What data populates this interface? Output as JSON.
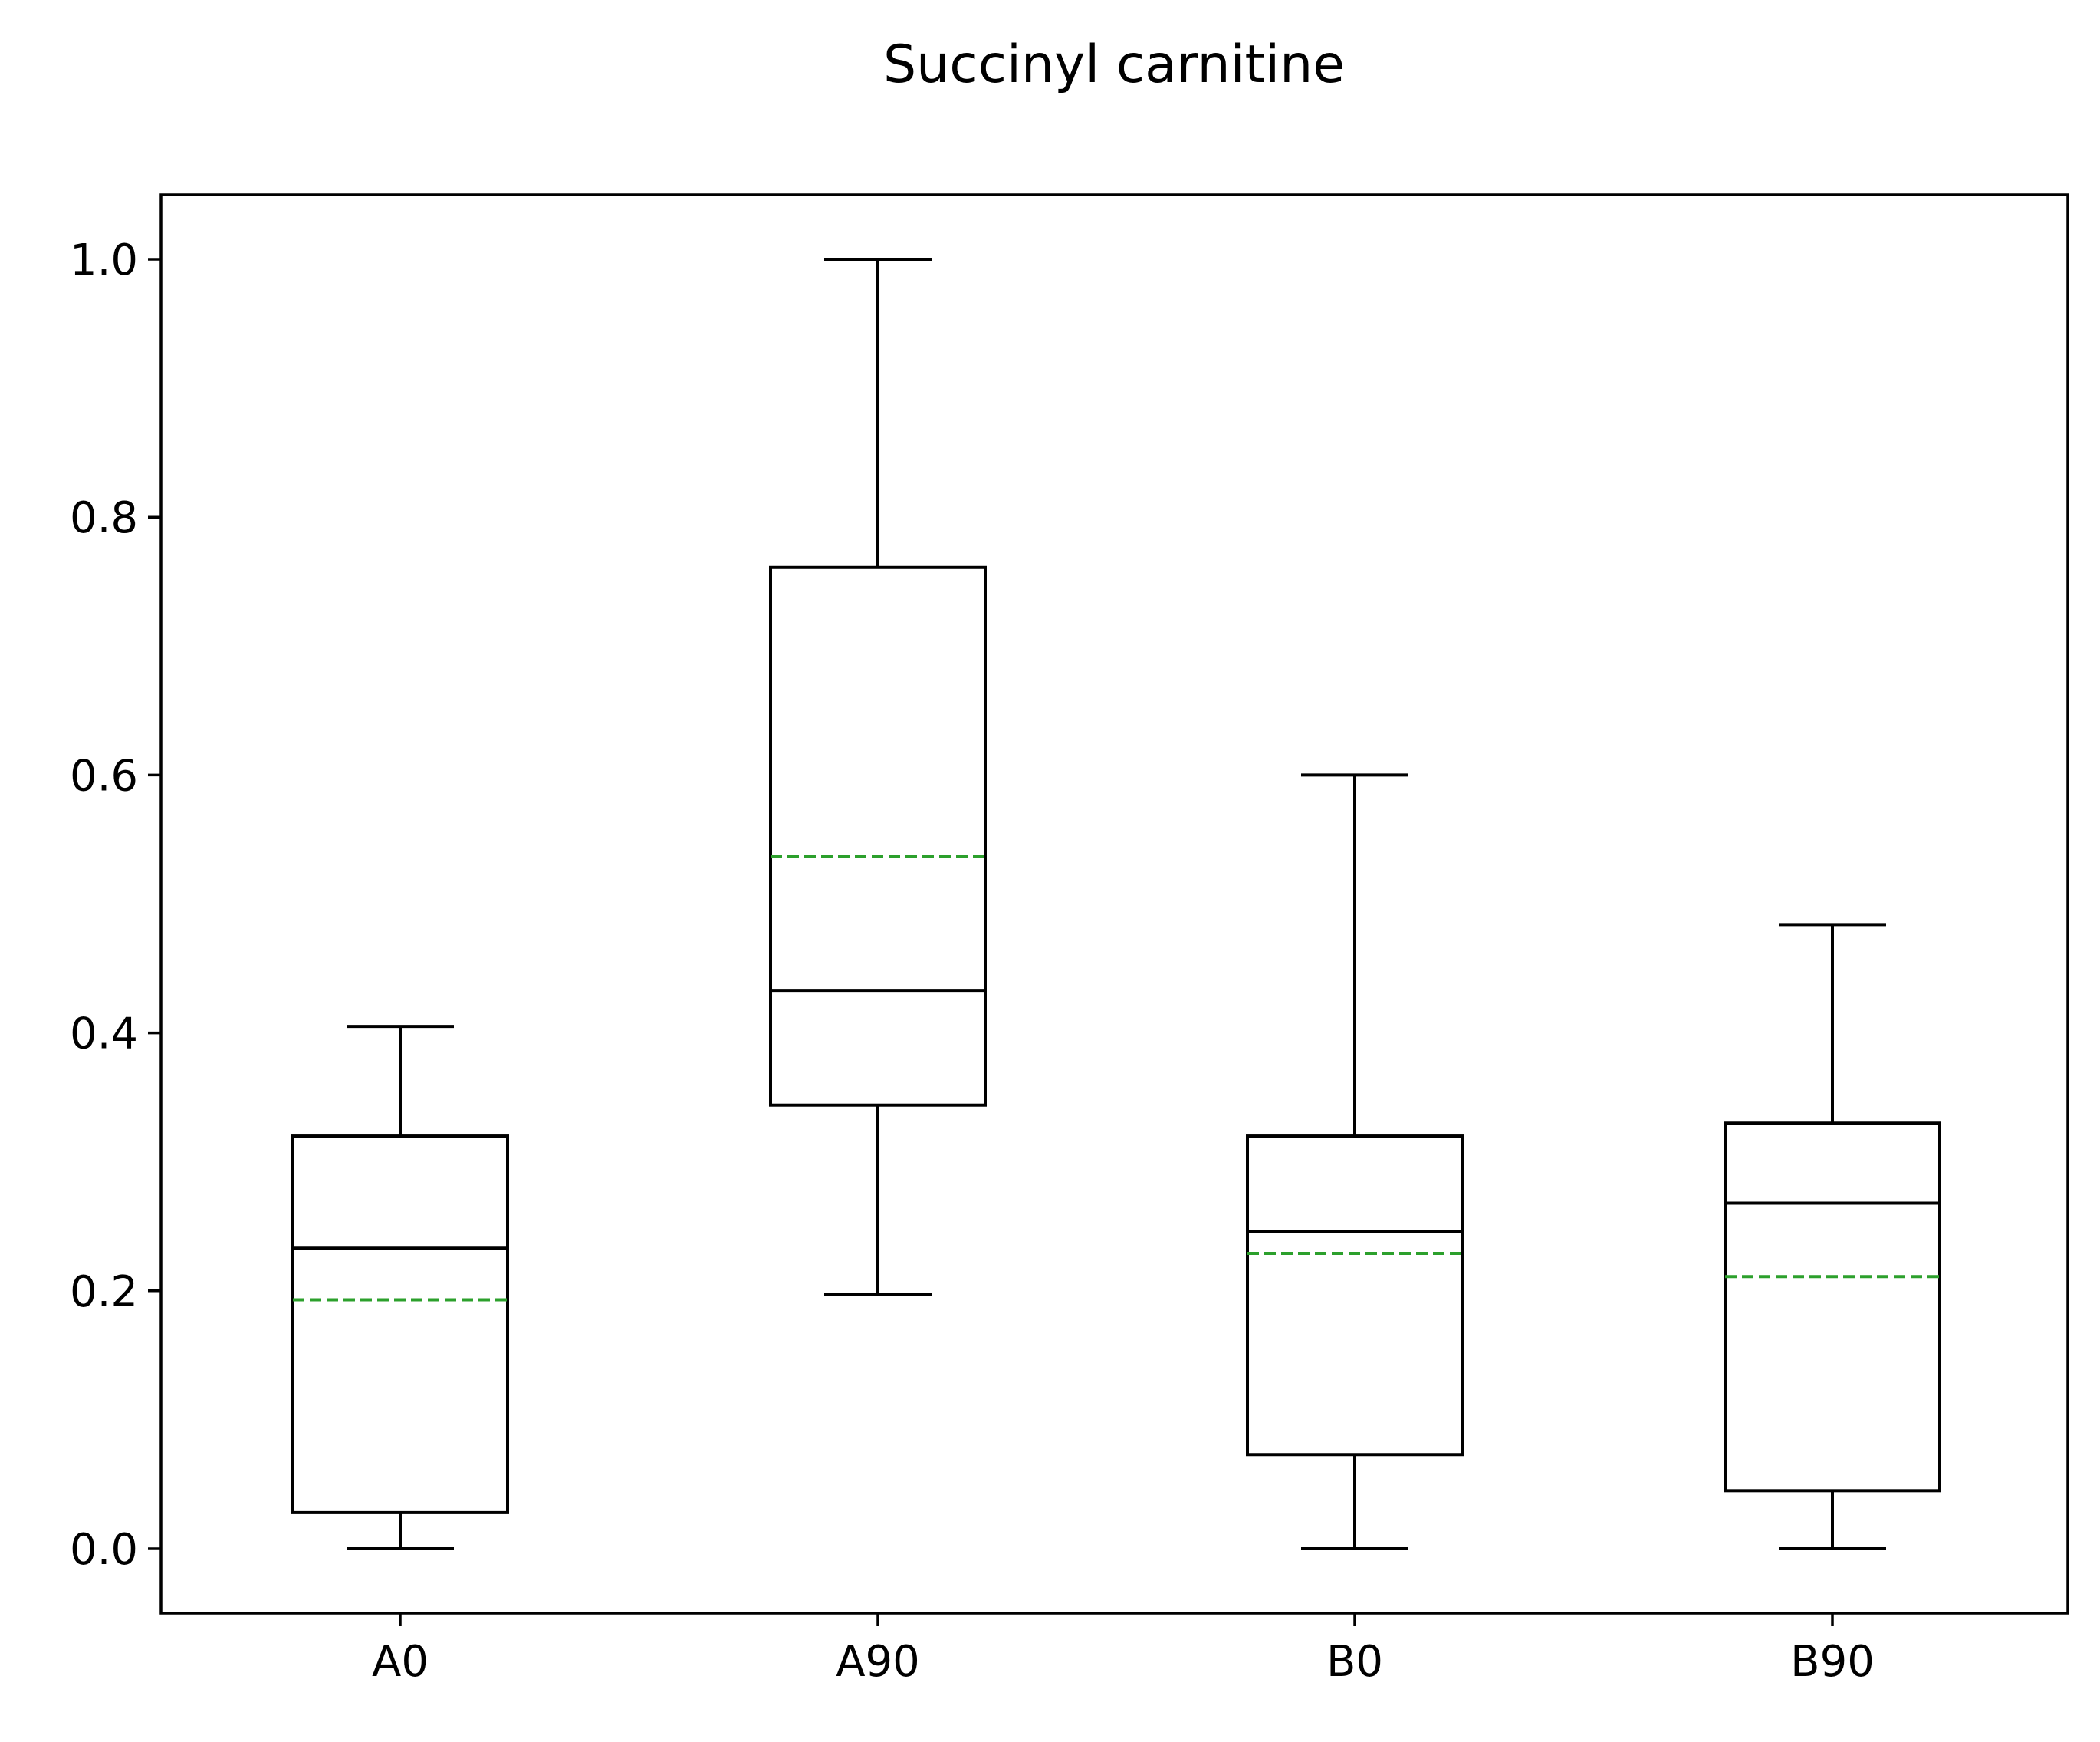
{
  "chart_data": {
    "type": "box",
    "title": "Succinyl carnitine",
    "xlabel": "",
    "ylabel": "",
    "categories": [
      "A0",
      "A90",
      "B0",
      "B90"
    ],
    "boxes": [
      {
        "name": "A0",
        "whislo": 0.0,
        "q1": 0.028,
        "med": 0.233,
        "q3": 0.32,
        "whishi": 0.405,
        "mean": 0.193
      },
      {
        "name": "A90",
        "whislo": 0.197,
        "q1": 0.344,
        "med": 0.433,
        "q3": 0.761,
        "whishi": 1.0,
        "mean": 0.537
      },
      {
        "name": "B0",
        "whislo": 0.0,
        "q1": 0.073,
        "med": 0.246,
        "q3": 0.32,
        "whishi": 0.6,
        "mean": 0.229
      },
      {
        "name": "B90",
        "whislo": 0.0,
        "q1": 0.045,
        "med": 0.268,
        "q3": 0.33,
        "whishi": 0.484,
        "mean": 0.211
      }
    ],
    "ylim": [
      -0.05,
      1.05
    ],
    "yticks": [
      0.0,
      0.2,
      0.4,
      0.6,
      0.8,
      1.0
    ],
    "ytick_labels": [
      "0.0",
      "0.2",
      "0.4",
      "0.6",
      "0.8",
      "1.0"
    ],
    "grid": false,
    "legend": "none",
    "mean_line_style": "dashed",
    "colors": {
      "box": "#000000",
      "median": "#000000",
      "mean": "#2ca02c",
      "axes": "#000000",
      "background": "#ffffff"
    }
  }
}
